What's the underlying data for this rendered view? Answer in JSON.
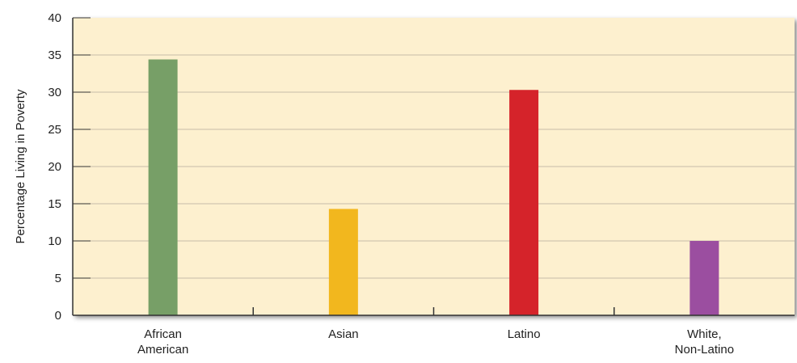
{
  "chart_data": {
    "type": "bar",
    "title": "",
    "xlabel": "",
    "ylabel": "Percentage Living in Poverty",
    "ylim": [
      0,
      40
    ],
    "yticks": [
      0,
      5,
      10,
      15,
      20,
      25,
      30,
      35,
      40
    ],
    "grid": true,
    "categories": [
      [
        "African",
        "American"
      ],
      [
        "Asian"
      ],
      [
        "Latino"
      ],
      [
        "White,",
        "Non-Latino"
      ]
    ],
    "values": [
      34.4,
      14.3,
      30.3,
      10.0
    ],
    "colors": [
      "#779f67",
      "#f2b71e",
      "#d5232a",
      "#9b4ea0"
    ],
    "plot_background": "#fdf0cf",
    "gridline_color": "#c8bca8"
  }
}
